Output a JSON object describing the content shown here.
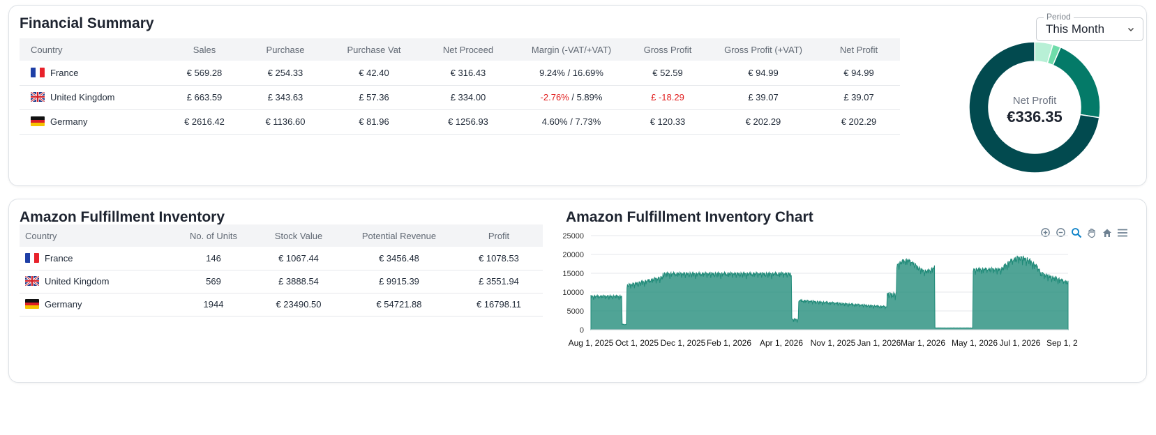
{
  "financial": {
    "title": "Financial Summary",
    "columns": [
      "Country",
      "Sales",
      "Purchase",
      "Purchase Vat",
      "Net Proceed",
      "Margin (-VAT/+VAT)",
      "Gross Profit",
      "Gross Profit (+VAT)",
      "Net Profit"
    ],
    "rows": [
      {
        "country": "France",
        "flag": "fr-flag-icon",
        "sales": "€ 569.28",
        "purchase": "€ 254.33",
        "purchase_vat": "€ 42.40",
        "net_proceed": "€ 316.43",
        "margin_a": "9.24%",
        "margin_b": " / 16.69%",
        "gross_profit": "€ 52.59",
        "gross_profit_vat": "€ 94.99",
        "net_profit": "€ 94.99"
      },
      {
        "country": "United Kingdom",
        "flag": "uk-flag-icon",
        "sales": "£ 663.59",
        "purchase": "£ 343.63",
        "purchase_vat": "£ 57.36",
        "net_proceed": "£ 334.00",
        "margin_a": "-2.76%",
        "margin_b": " / 5.89%",
        "gross_profit": "£ -18.29",
        "gross_profit_vat": "£ 39.07",
        "net_profit": "£ 39.07"
      },
      {
        "country": "Germany",
        "flag": "de-flag-icon",
        "sales": "€ 2616.42",
        "purchase": "€ 1136.60",
        "purchase_vat": "€ 81.96",
        "net_proceed": "€ 1256.93",
        "margin_a": "4.60%",
        "margin_b": " / 7.73%",
        "gross_profit": "€ 120.33",
        "gross_profit_vat": "€ 202.29",
        "net_profit": "€ 202.29"
      }
    ],
    "negative_color": "#e11d1d"
  },
  "period": {
    "label": "Period",
    "value": "This Month"
  },
  "donut": {
    "label": "Net Profit",
    "value": "€336.35",
    "colors": [
      "#b8f0d6",
      "#6fdcaa",
      "#047a68",
      "#024a4f"
    ]
  },
  "inventory": {
    "title": "Amazon Fulfillment Inventory",
    "columns": [
      "Country",
      "No. of Units",
      "Stock Value",
      "Potential Revenue",
      "Profit"
    ],
    "rows": [
      {
        "country": "France",
        "units": "146",
        "stock_value": "€ 1067.44",
        "potential_revenue": "€ 3456.48",
        "profit": "€ 1078.53"
      },
      {
        "country": "United Kingdom",
        "units": "569",
        "stock_value": "£ 3888.54",
        "potential_revenue": "£ 9915.39",
        "profit": "£ 3551.94"
      },
      {
        "country": "Germany",
        "units": "1944",
        "stock_value": "€ 23490.50",
        "potential_revenue": "€ 54721.88",
        "profit": "€ 16798.11"
      }
    ]
  },
  "chart_title": "Amazon Fulfillment Inventory Chart",
  "toolbar_icons": [
    "zoom-in-icon",
    "zoom-out-icon",
    "selection-zoom-icon",
    "pan-hand-icon",
    "home-reset-icon",
    "menu-icon"
  ],
  "chart_data": {
    "type": "area",
    "series_color": "#1f8a78",
    "ylim": [
      0,
      25000
    ],
    "y_ticks": [
      "25000",
      "20000",
      "15000",
      "10000",
      "5000",
      "0"
    ],
    "x_tick_labels": [
      "Aug 1, 2025",
      "Oct 1, 2025",
      "Dec 1, 2025",
      "Feb 1, 2026",
      "Apr 1, 2026",
      "Nov 1, 2025",
      "Jan 1, 2026",
      "Mar 1, 2026",
      "May 1, 2026",
      "Jul 1, 2026",
      "Sep 1, 2"
    ],
    "segments": [
      {
        "from": 0.0,
        "to": 0.065,
        "base": 9200,
        "amp": 0.12
      },
      {
        "from": 0.065,
        "to": 0.075,
        "base": 1500,
        "amp": 0.2
      },
      {
        "from": 0.075,
        "to": 0.15,
        "base": 13800,
        "amp": 0.12
      },
      {
        "from": 0.15,
        "to": 0.42,
        "base": 15300,
        "amp": 0.1
      },
      {
        "from": 0.42,
        "to": 0.435,
        "base": 3000,
        "amp": 0.3
      },
      {
        "from": 0.435,
        "to": 0.62,
        "base": 7000,
        "amp": 0.12
      },
      {
        "from": 0.62,
        "to": 0.64,
        "base": 10000,
        "amp": 0.2
      },
      {
        "from": 0.64,
        "to": 0.72,
        "base": 18200,
        "amp": 0.1
      },
      {
        "from": 0.72,
        "to": 0.8,
        "base": 500,
        "amp": 0.1
      },
      {
        "from": 0.8,
        "to": 0.86,
        "base": 16500,
        "amp": 0.1
      },
      {
        "from": 0.86,
        "to": 0.94,
        "base": 17500,
        "amp": 0.12
      },
      {
        "from": 0.94,
        "to": 1.0,
        "base": 13000,
        "amp": 0.12
      }
    ]
  }
}
